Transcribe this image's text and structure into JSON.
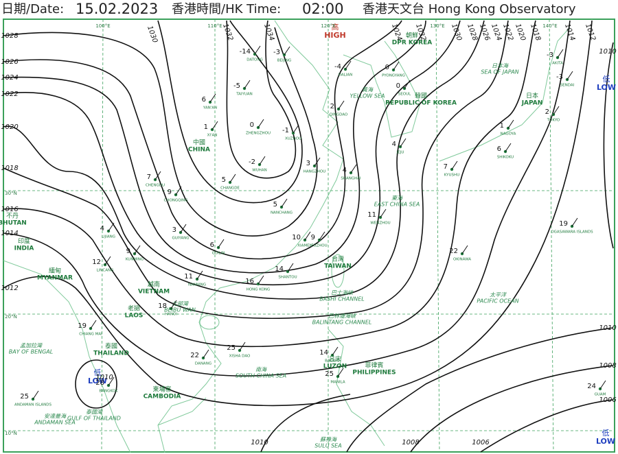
{
  "header": {
    "date_label": "日期/Date:",
    "date": "15.02.2023",
    "time_label": "香港時間/HK Time:",
    "time": "02:00",
    "observatory": "香港天文台 Hong Kong Observatory"
  },
  "pressure_systems": [
    {
      "label_zh": "高",
      "label": "HIGH"
    },
    {
      "label_zh": "低",
      "label": "LOW"
    },
    {
      "label_zh": "低",
      "label": "LOW"
    },
    {
      "label_zh": "低",
      "label": "LOW"
    }
  ],
  "isobar_labels": [
    1028,
    1026,
    1024,
    1022,
    1020,
    1018,
    1016,
    1014,
    1012,
    1030,
    1032,
    1034,
    1024,
    1032,
    1030,
    1028,
    1026,
    1024,
    1022,
    1020,
    1018,
    1014,
    1012,
    1010,
    1010,
    1010,
    1008,
    1006,
    1010,
    1008,
    1006
  ],
  "grid_labels": [
    "30°N",
    "20°N",
    "10°N",
    "100°E",
    "110°E",
    "120°E",
    "130°E",
    "140°E"
  ],
  "regions": [
    {
      "name_zh": "中國",
      "name": "CHINA"
    },
    {
      "name_zh": "印度",
      "name": "INDIA"
    },
    {
      "name_zh": "不丹",
      "name": "BHUTAN"
    },
    {
      "name_zh": "緬甸",
      "name": "MYANMAR"
    },
    {
      "name_zh": "越南",
      "name": "VIETNAM"
    },
    {
      "name_zh": "老撾",
      "name": "LAOS"
    },
    {
      "name_zh": "泰國",
      "name": "THAILAND"
    },
    {
      "name_zh": "柬埔寨",
      "name": "CAMBODIA"
    },
    {
      "name_zh": "菲律賓",
      "name": "PHILIPPINES"
    },
    {
      "name_zh": "朝鮮",
      "name": "DPR KOREA"
    },
    {
      "name_zh": "韓國",
      "name": "REPUBLIC OF KOREA"
    },
    {
      "name_zh": "日本",
      "name": "JAPAN"
    },
    {
      "name_zh": "台灣",
      "name": "TAIWAN"
    },
    {
      "name_zh": "呂宋",
      "name": "LUZON"
    }
  ],
  "seas": [
    {
      "name_zh": "黃海",
      "name": "YELLOW SEA"
    },
    {
      "name_zh": "東海",
      "name": "EAST CHINA SEA"
    },
    {
      "name_zh": "南海",
      "name": "SOUTH CHINA SEA"
    },
    {
      "name_zh": "太平洋",
      "name": "PACIFIC OCEAN"
    },
    {
      "name_zh": "日本海",
      "name": "SEA OF JAPAN"
    },
    {
      "name_zh": "孟加拉灣",
      "name": "BAY OF BENGAL"
    },
    {
      "name_zh": "泰國灣",
      "name": "GULF OF THAILAND"
    },
    {
      "name_zh": "安達曼海",
      "name": "ANDAMAN SEA"
    },
    {
      "name_zh": "蘇祿海",
      "name": "SULU SEA"
    },
    {
      "name_zh": "巴士海峽",
      "name": "BASHI CHANNEL"
    },
    {
      "name_zh": "巴林塘海峽",
      "name": "BALINTANG CHANNEL"
    },
    {
      "name_zh": "北部灣",
      "name": "BEIBU WAN"
    }
  ],
  "stations": [
    {
      "name": "DATONG",
      "temp": -14
    },
    {
      "name": "BEIJING",
      "temp": -3
    },
    {
      "name": "TAIYUAN",
      "temp": -5
    },
    {
      "name": "YAN'AN",
      "temp": 6
    },
    {
      "name": "XI'AN",
      "temp": 1
    },
    {
      "name": "ZHENGZHOU",
      "temp": 0
    },
    {
      "name": "XUZHOU",
      "temp": -1
    },
    {
      "name": "WUHAN",
      "temp": -2
    },
    {
      "name": "CHANGDE",
      "temp": 5
    },
    {
      "name": "NANCHANG",
      "temp": 5
    },
    {
      "name": "CHONGQING",
      "temp": 9
    },
    {
      "name": "CHENGDU",
      "temp": 7
    },
    {
      "name": "GUIYANG",
      "temp": 3
    },
    {
      "name": "GUILIN",
      "temp": 6
    },
    {
      "name": "LIJIANG",
      "temp": 4
    },
    {
      "name": "KUNMING",
      "temp": 9
    },
    {
      "name": "LINCANG",
      "temp": 12
    },
    {
      "name": "XIAMEN",
      "temp": 10
    },
    {
      "name": "FUZHOU",
      "temp": 9
    },
    {
      "name": "NANNING",
      "temp": 11
    },
    {
      "name": "HONG KONG",
      "temp": 16
    },
    {
      "name": "SHANTOU",
      "temp": 14
    },
    {
      "name": "HANOI",
      "temp": 18
    },
    {
      "name": "QINGDAO",
      "temp": 2
    },
    {
      "name": "DALIAN",
      "temp": -4
    },
    {
      "name": "PYONGYANG",
      "temp": 0
    },
    {
      "name": "SEOUL",
      "temp": 0
    },
    {
      "name": "JEJU",
      "temp": 4
    },
    {
      "name": "SHANGHAI",
      "temp": 4
    },
    {
      "name": "HANGZHOU",
      "temp": 3
    },
    {
      "name": "WENZHOU",
      "temp": 11
    },
    {
      "name": "KYUSHU",
      "temp": 7
    },
    {
      "name": "SHIKOKU",
      "temp": 6
    },
    {
      "name": "TOKYO",
      "temp": 2
    },
    {
      "name": "NAGOYA",
      "temp": 1
    },
    {
      "name": "AKITA",
      "temp": -3
    },
    {
      "name": "SENDAI",
      "temp": -3
    },
    {
      "name": "CHIANG MAI",
      "temp": 19
    },
    {
      "name": "BANGKOK",
      "temp": 28
    },
    {
      "name": "ANDAMAN ISLANDS",
      "temp": 25
    },
    {
      "name": "DANANG",
      "temp": 22
    },
    {
      "name": "XISHA DAO",
      "temp": 25
    },
    {
      "name": "BAGUIO",
      "temp": 14
    },
    {
      "name": "MANILA",
      "temp": 25
    },
    {
      "name": "OKINAWA",
      "temp": 22
    },
    {
      "name": "OGASAWARA ISLANDS",
      "temp": 19
    },
    {
      "name": "GUAM",
      "temp": 24
    }
  ]
}
